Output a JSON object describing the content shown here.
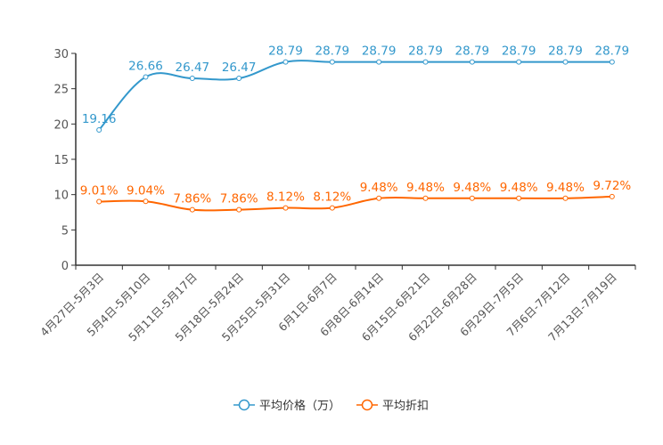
{
  "chart_data": {
    "type": "line",
    "categories": [
      "4月27日-5月3日",
      "5月4日-5月10日",
      "5月11日-5月17日",
      "5月18日-5月24日",
      "5月25日-5月31日",
      "6月1日-6月7日",
      "6月8日-6月14日",
      "6月15日-6月21日",
      "6月22日-6月28日",
      "6月29日-7月5日",
      "7月6日-7月12日",
      "7月13日-7月19日"
    ],
    "series": [
      {
        "name": "平均价格（万）",
        "color": "#3398cc",
        "values": [
          19.16,
          26.66,
          26.47,
          26.47,
          28.79,
          28.79,
          28.79,
          28.79,
          28.79,
          28.79,
          28.79,
          28.79
        ],
        "labels": [
          "19.16",
          "26.66",
          "26.47",
          "26.47",
          "28.79",
          "28.79",
          "28.79",
          "28.79",
          "28.79",
          "28.79",
          "28.79",
          "28.79"
        ]
      },
      {
        "name": "平均折扣",
        "color": "#ff6600",
        "values": [
          9.01,
          9.04,
          7.86,
          7.86,
          8.12,
          8.12,
          9.48,
          9.48,
          9.48,
          9.48,
          9.48,
          9.72
        ],
        "labels": [
          "9.01%",
          "9.04%",
          "7.86%",
          "7.86%",
          "8.12%",
          "8.12%",
          "9.48%",
          "9.48%",
          "9.48%",
          "9.48%",
          "9.48%",
          "9.72%"
        ]
      }
    ],
    "yticks": [
      0,
      5,
      10,
      15,
      20,
      25,
      30
    ],
    "ylim": [
      0,
      30
    ],
    "legend_position": "bottom",
    "grid": false
  }
}
